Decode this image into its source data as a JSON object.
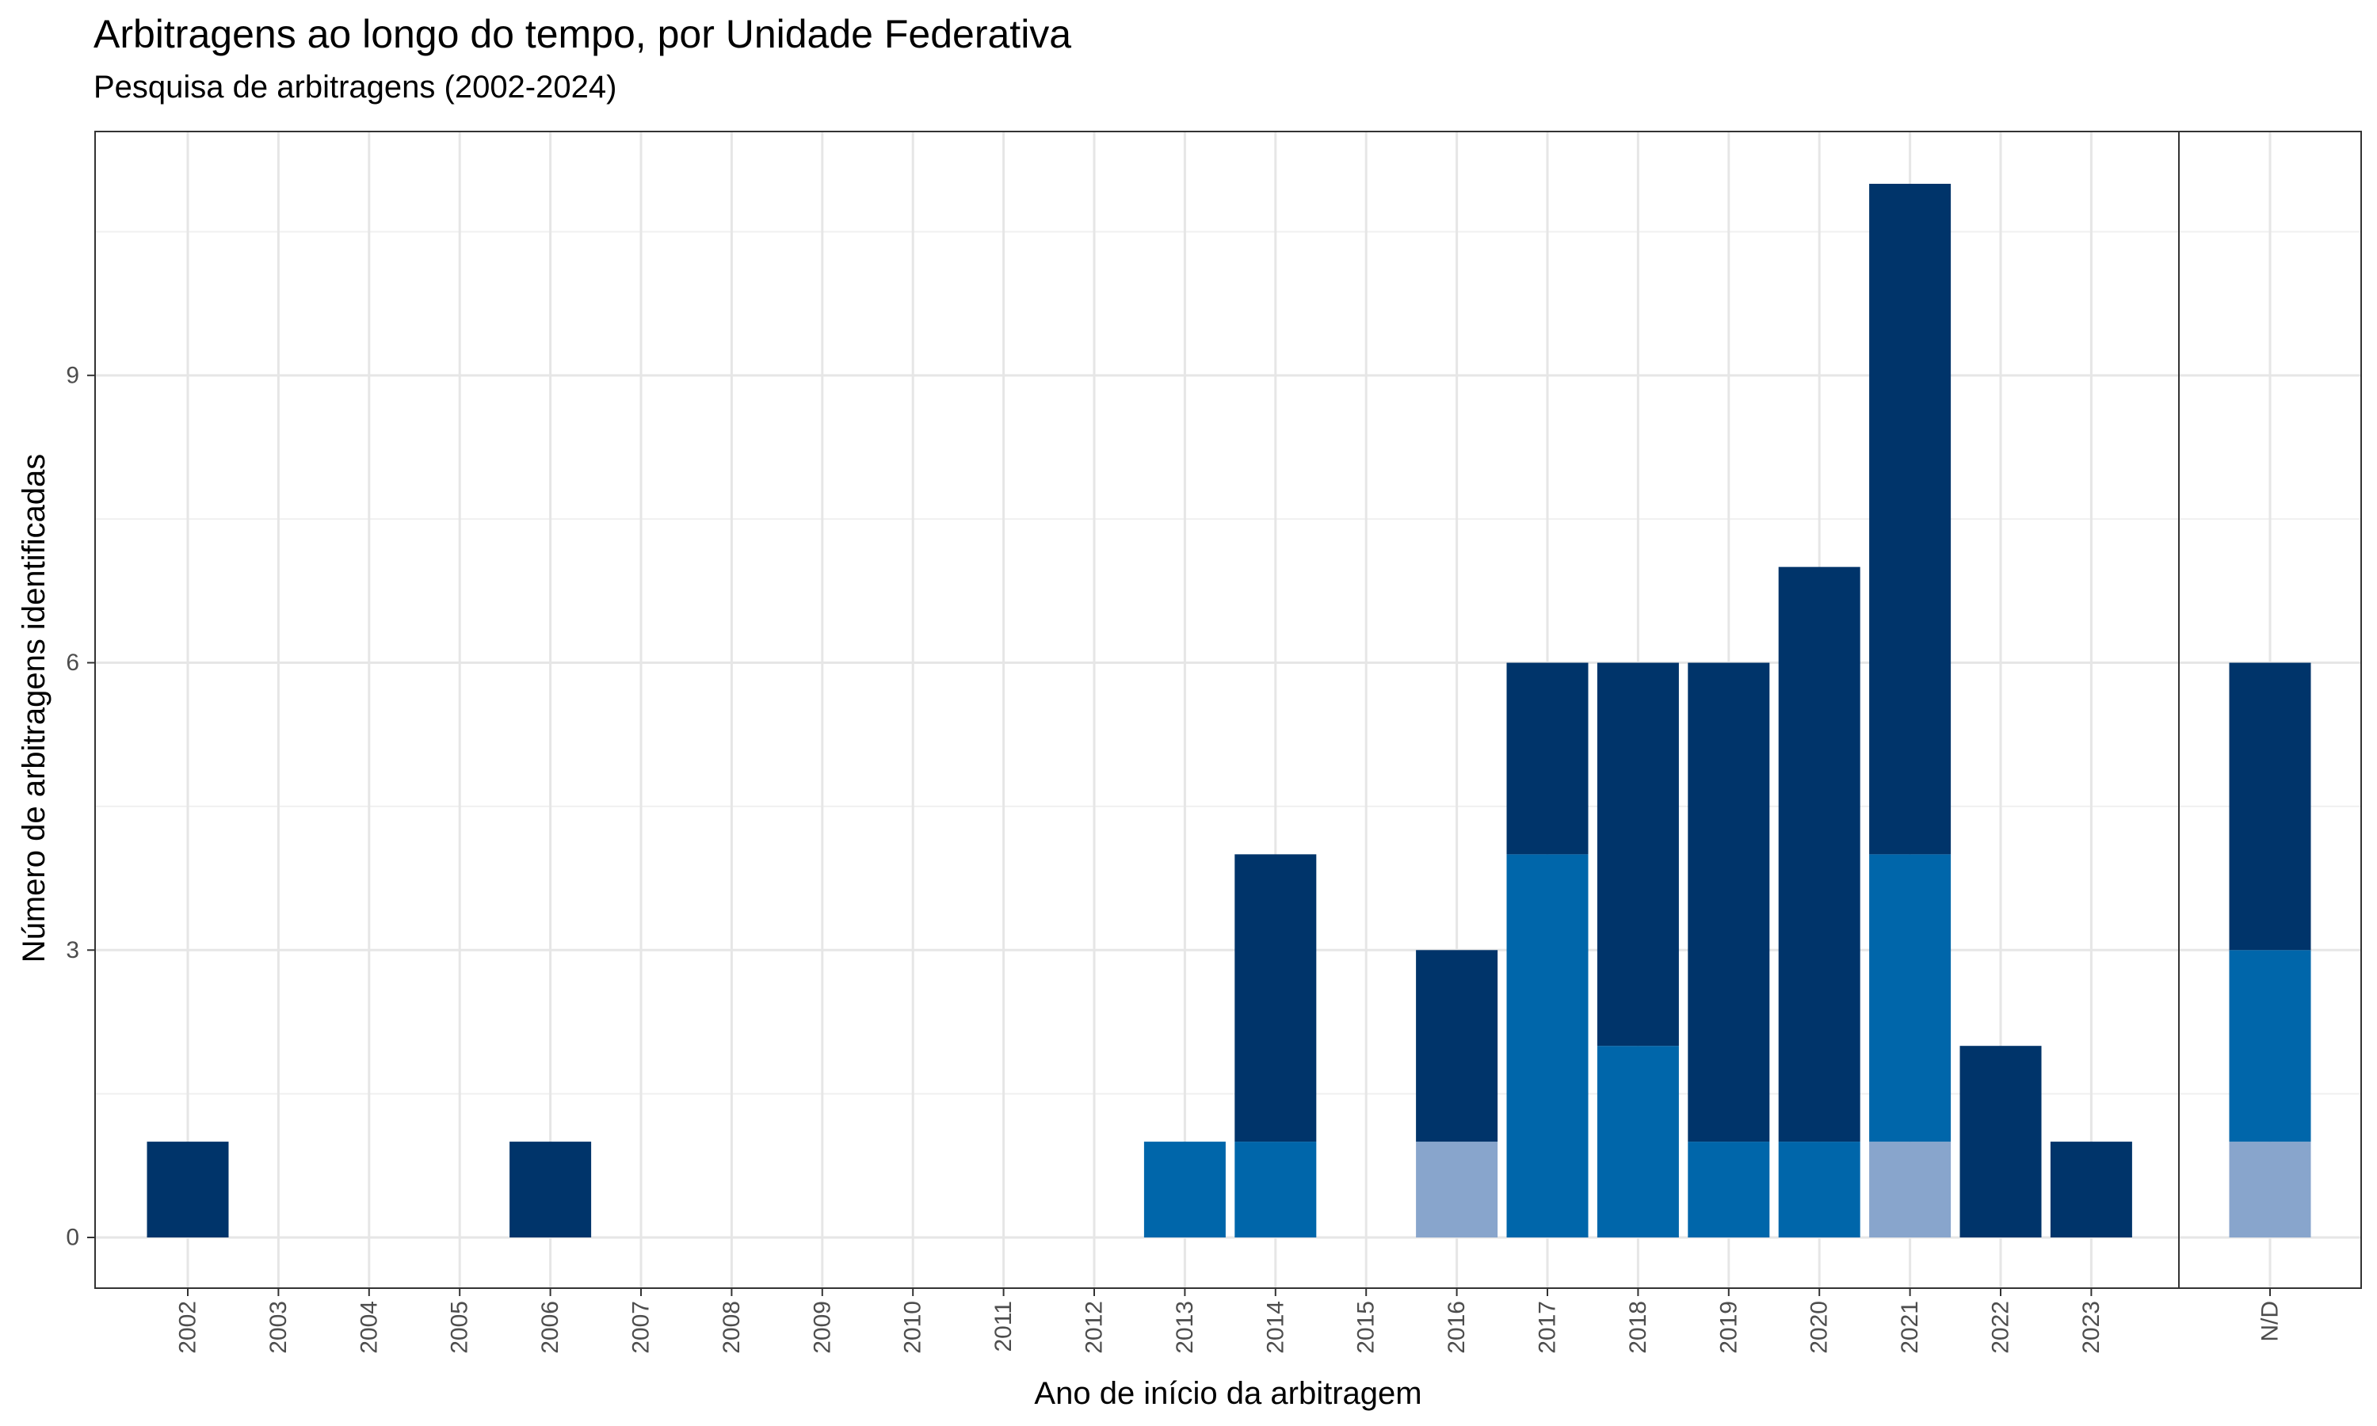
{
  "chart_data": {
    "type": "bar",
    "stacked": true,
    "title": "Arbitragens ao longo do tempo, por Unidade Federativa",
    "subtitle": "Pesquisa de arbitragens (2002-2024)",
    "xlabel": "Ano de início da arbitragem",
    "ylabel": "Número de arbitragens identificadas",
    "ylim": [
      0,
      11
    ],
    "yticks": [
      0,
      3,
      6,
      9
    ],
    "grid": true,
    "legend": "none",
    "panels": [
      {
        "categories": [
          "2002",
          "2003",
          "2004",
          "2005",
          "2006",
          "2007",
          "2008",
          "2009",
          "2010",
          "2011",
          "2012",
          "2013",
          "2014",
          "2015",
          "2016",
          "2017",
          "2018",
          "2019",
          "2020",
          "2021",
          "2022",
          "2023"
        ],
        "series": [
          {
            "color": "#88a5cc",
            "values": [
              0,
              0,
              0,
              0,
              0,
              0,
              0,
              0,
              0,
              0,
              0,
              0,
              0,
              0,
              1,
              0,
              0,
              0,
              0,
              1,
              0,
              0
            ]
          },
          {
            "color": "#0066aa",
            "values": [
              0,
              0,
              0,
              0,
              0,
              0,
              0,
              0,
              0,
              0,
              0,
              1,
              1,
              0,
              0,
              4,
              2,
              1,
              1,
              3,
              0,
              0
            ]
          },
          {
            "color": "#00346a",
            "values": [
              1,
              0,
              0,
              0,
              1,
              0,
              0,
              0,
              0,
              0,
              0,
              0,
              3,
              0,
              2,
              2,
              4,
              5,
              6,
              7,
              2,
              1
            ]
          }
        ]
      },
      {
        "categories": [
          "N/D"
        ],
        "series": [
          {
            "color": "#88a5cc",
            "values": [
              1
            ]
          },
          {
            "color": "#0066aa",
            "values": [
              2
            ]
          },
          {
            "color": "#00346a",
            "values": [
              3
            ]
          }
        ]
      }
    ]
  }
}
